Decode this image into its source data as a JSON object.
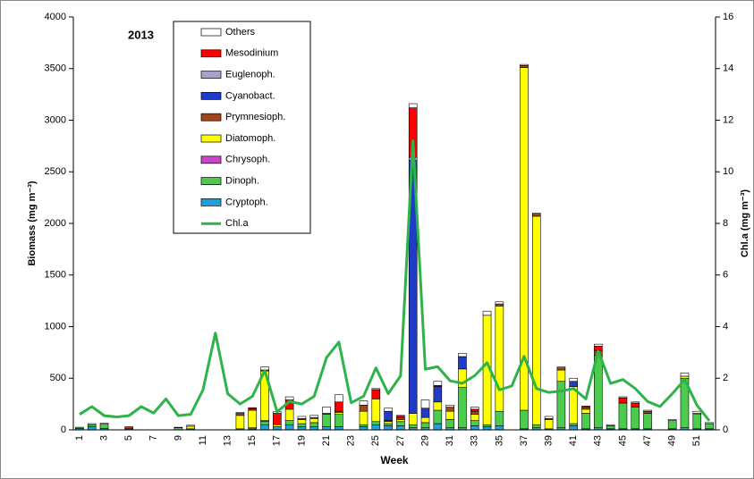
{
  "chart_data": {
    "type": "bar",
    "stacked": true,
    "annotation": "2013",
    "xlabel": "Week",
    "ylabel": "Biomass  (mg m⁻³)",
    "y2label": "Chl.a  (mg m⁻³)",
    "categories": [
      "1",
      null,
      "3",
      null,
      "5",
      null,
      "7",
      null,
      "9",
      null,
      "11",
      null,
      "13",
      null,
      "15",
      null,
      "17",
      null,
      "19",
      null,
      "21",
      null,
      "23",
      null,
      "25",
      null,
      "27",
      null,
      "29",
      null,
      "31",
      null,
      "33",
      null,
      "35",
      null,
      "37",
      null,
      "39",
      null,
      "41",
      null,
      "43",
      null,
      "45",
      null,
      "47",
      null,
      "49",
      null,
      "51",
      null
    ],
    "ylim": [
      0,
      4000
    ],
    "yticks": [
      0,
      500,
      1000,
      1500,
      2000,
      2500,
      3000,
      3500,
      4000
    ],
    "y2lim": [
      0,
      16
    ],
    "y2ticks": [
      0,
      2,
      4,
      6,
      8,
      10,
      12,
      14,
      16
    ],
    "series": [
      {
        "name": "Cryptoph.",
        "color": "#1ea0dc",
        "values": [
          15,
          30,
          15,
          0,
          10,
          0,
          0,
          0,
          0,
          10,
          0,
          0,
          0,
          0,
          10,
          50,
          30,
          50,
          30,
          30,
          30,
          30,
          0,
          30,
          50,
          40,
          40,
          20,
          20,
          60,
          20,
          20,
          40,
          30,
          40,
          0,
          10,
          20,
          10,
          20,
          40,
          10,
          20,
          10,
          10,
          10,
          10,
          0,
          10,
          20,
          10,
          10
        ]
      },
      {
        "name": "Dinoph.",
        "color": "#4ccc4c",
        "values": [
          10,
          20,
          40,
          0,
          0,
          0,
          0,
          0,
          20,
          0,
          0,
          0,
          0,
          10,
          10,
          30,
          0,
          40,
          30,
          40,
          120,
          120,
          0,
          20,
          30,
          20,
          40,
          30,
          50,
          130,
          80,
          390,
          50,
          20,
          140,
          0,
          180,
          30,
          0,
          450,
          20,
          150,
          700,
          30,
          250,
          210,
          150,
          0,
          80,
          480,
          140,
          50
        ]
      },
      {
        "name": "Chrysoph.",
        "color": "#cc44cc",
        "values": [
          0,
          0,
          0,
          0,
          0,
          0,
          0,
          0,
          0,
          0,
          0,
          0,
          0,
          0,
          0,
          10,
          0,
          0,
          0,
          0,
          0,
          0,
          0,
          0,
          0,
          0,
          0,
          0,
          0,
          0,
          0,
          0,
          0,
          0,
          0,
          0,
          0,
          0,
          0,
          0,
          0,
          0,
          0,
          0,
          0,
          0,
          0,
          0,
          0,
          0,
          0,
          0
        ]
      },
      {
        "name": "Diatomoph.",
        "color": "#ffff00",
        "values": [
          0,
          0,
          0,
          0,
          0,
          0,
          0,
          0,
          0,
          25,
          0,
          0,
          0,
          130,
          170,
          480,
          20,
          110,
          40,
          40,
          0,
          20,
          0,
          130,
          220,
          20,
          20,
          110,
          50,
          80,
          80,
          180,
          60,
          1060,
          1020,
          0,
          3320,
          2020,
          90,
          110,
          360,
          40,
          0,
          0,
          0,
          0,
          0,
          0,
          0,
          20,
          10,
          0
        ]
      },
      {
        "name": "Prymnesioph.",
        "color": "#a0461e",
        "values": [
          0,
          0,
          0,
          0,
          20,
          0,
          0,
          0,
          0,
          0,
          0,
          0,
          0,
          20,
          15,
          10,
          0,
          0,
          10,
          10,
          10,
          10,
          0,
          60,
          0,
          10,
          20,
          0,
          0,
          0,
          40,
          0,
          30,
          0,
          20,
          0,
          20,
          20,
          10,
          20,
          0,
          20,
          50,
          0,
          0,
          0,
          20,
          0,
          0,
          0,
          0,
          0
        ]
      },
      {
        "name": "Cyanobact.",
        "color": "#1e3cc8",
        "values": [
          0,
          0,
          0,
          0,
          0,
          0,
          0,
          0,
          0,
          0,
          0,
          0,
          0,
          0,
          0,
          0,
          0,
          0,
          0,
          0,
          0,
          0,
          0,
          0,
          0,
          90,
          0,
          2450,
          90,
          150,
          0,
          120,
          0,
          0,
          0,
          0,
          0,
          0,
          0,
          0,
          50,
          0,
          0,
          0,
          0,
          0,
          0,
          0,
          0,
          0,
          0,
          0
        ]
      },
      {
        "name": "Euglenoph.",
        "color": "#aaa0c8",
        "values": [
          0,
          0,
          0,
          0,
          0,
          0,
          0,
          0,
          0,
          0,
          0,
          0,
          0,
          0,
          0,
          0,
          0,
          0,
          0,
          0,
          0,
          0,
          0,
          0,
          0,
          0,
          0,
          30,
          0,
          0,
          0,
          0,
          0,
          0,
          0,
          0,
          0,
          0,
          0,
          0,
          0,
          0,
          0,
          0,
          0,
          0,
          0,
          0,
          0,
          0,
          0,
          0
        ]
      },
      {
        "name": "Mesodinium",
        "color": "#ff0000",
        "values": [
          0,
          0,
          0,
          0,
          0,
          0,
          0,
          0,
          0,
          0,
          0,
          0,
          0,
          0,
          10,
          0,
          110,
          90,
          0,
          0,
          0,
          90,
          0,
          0,
          90,
          0,
          20,
          480,
          0,
          10,
          0,
          0,
          20,
          0,
          0,
          0,
          0,
          0,
          0,
          0,
          0,
          10,
          40,
          0,
          50,
          40,
          0,
          0,
          0,
          0,
          0,
          0
        ]
      },
      {
        "name": "Others",
        "color": "#ffffff",
        "values": [
          0,
          10,
          10,
          0,
          0,
          0,
          0,
          0,
          5,
          10,
          0,
          0,
          0,
          10,
          0,
          30,
          15,
          30,
          20,
          20,
          60,
          70,
          0,
          40,
          10,
          30,
          0,
          40,
          80,
          40,
          20,
          30,
          20,
          40,
          20,
          0,
          10,
          10,
          20,
          10,
          30,
          0,
          20,
          10,
          10,
          10,
          10,
          0,
          10,
          30,
          20,
          10
        ]
      },
      {
        "name": "Chl.a",
        "type": "line",
        "axis": "y2",
        "color": "#2db34a",
        "values": [
          0.6,
          0.9,
          0.55,
          0.5,
          0.55,
          0.9,
          0.65,
          1.2,
          0.55,
          0.6,
          1.55,
          3.75,
          1.4,
          1.0,
          1.3,
          2.3,
          0.7,
          1.1,
          1.0,
          1.3,
          2.8,
          3.4,
          1.05,
          1.3,
          2.4,
          1.4,
          2.1,
          11.2,
          2.35,
          2.45,
          1.9,
          1.8,
          2.1,
          2.6,
          1.55,
          1.7,
          2.85,
          1.6,
          1.45,
          1.5,
          1.6,
          1.2,
          3.05,
          1.8,
          1.95,
          1.6,
          1.1,
          0.9,
          1.4,
          1.95,
          0.95,
          0.35
        ]
      }
    ]
  }
}
